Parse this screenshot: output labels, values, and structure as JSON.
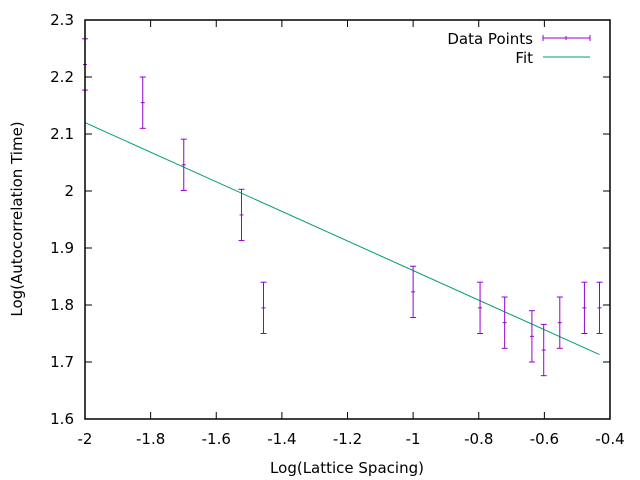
{
  "chart_data": {
    "type": "scatter",
    "title": "",
    "xlabel": "Log(Lattice Spacing)",
    "ylabel": "Log(Autocorrelation Time)",
    "xlim": [
      -2,
      -0.4
    ],
    "ylim": [
      1.6,
      2.3
    ],
    "x_ticks": [
      "-2",
      "-1.8",
      "-1.6",
      "-1.4",
      "-1.2",
      "-1",
      "-0.8",
      "-0.6",
      "-0.4"
    ],
    "y_ticks": [
      "1.6",
      "1.7",
      "1.8",
      "1.9",
      "2",
      "2.1",
      "2.2",
      "2.3"
    ],
    "grid": false,
    "legend_position": "top-right",
    "series": [
      {
        "name": "Data Points",
        "kind": "errorbars",
        "color": "#9400d3",
        "points": [
          {
            "x": -2.0,
            "y": 2.222,
            "err": 0.045
          },
          {
            "x": -1.824,
            "y": 2.155,
            "err": 0.045
          },
          {
            "x": -1.699,
            "y": 2.046,
            "err": 0.045
          },
          {
            "x": -1.523,
            "y": 1.958,
            "err": 0.045
          },
          {
            "x": -1.456,
            "y": 1.795,
            "err": 0.045
          },
          {
            "x": -1.0,
            "y": 1.823,
            "err": 0.045
          },
          {
            "x": -0.796,
            "y": 1.795,
            "err": 0.045
          },
          {
            "x": -0.721,
            "y": 1.769,
            "err": 0.045
          },
          {
            "x": -0.638,
            "y": 1.745,
            "err": 0.045
          },
          {
            "x": -0.602,
            "y": 1.721,
            "err": 0.045
          },
          {
            "x": -0.553,
            "y": 1.769,
            "err": 0.045
          },
          {
            "x": -0.478,
            "y": 1.795,
            "err": 0.045
          },
          {
            "x": -0.432,
            "y": 1.795,
            "err": 0.045
          }
        ]
      },
      {
        "name": "Fit",
        "kind": "line",
        "color": "#009e73",
        "x": [
          -2.0,
          -0.432
        ],
        "y": [
          2.12,
          1.713
        ]
      }
    ]
  }
}
